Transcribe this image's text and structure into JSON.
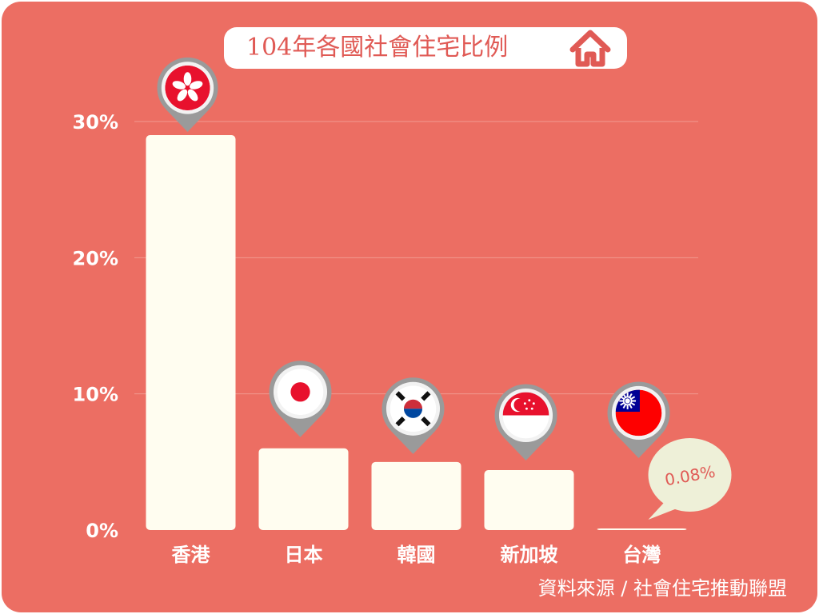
{
  "title": "104年各國社會住宅比例",
  "source": "資料來源 / 社會住宅推動聯盟",
  "colors": {
    "background": "#ec6e63",
    "bar": "#fffdf0",
    "gridline": "#f29a90",
    "title_text": "#e05a55",
    "callout_bg": "#eef0d8",
    "callout_text": "#e05a55",
    "flag_red": "#e8112d",
    "pin_ring": "#9a9a9a"
  },
  "icons": {
    "title": "house-icon",
    "pins": [
      "hong-kong-flag-icon",
      "japan-flag-icon",
      "south-korea-flag-icon",
      "singapore-flag-icon",
      "taiwan-flag-icon"
    ]
  },
  "chart_data": {
    "type": "bar",
    "categories": [
      "香港",
      "日本",
      "韓國",
      "新加坡",
      "台灣"
    ],
    "values": [
      29,
      6,
      5,
      4.4,
      0.08
    ],
    "ylim": [
      0,
      30
    ],
    "yticks": [
      "0%",
      "10%",
      "20%",
      "30%"
    ],
    "grid": true,
    "annotation": {
      "category": "台灣",
      "text": "0.08%"
    }
  }
}
